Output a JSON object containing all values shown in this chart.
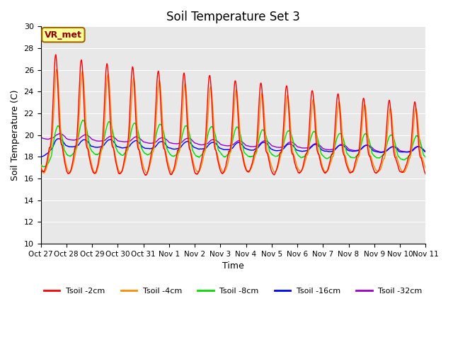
{
  "title": "Soil Temperature Set 3",
  "xlabel": "Time",
  "ylabel": "Soil Temperature (C)",
  "ylim": [
    10,
    30
  ],
  "yticks": [
    10,
    12,
    14,
    16,
    18,
    20,
    22,
    24,
    26,
    28,
    30
  ],
  "x_labels": [
    "Oct 27",
    "Oct 28",
    "Oct 29",
    "Oct 30",
    "Oct 31",
    "Nov 1",
    "Nov 2",
    "Nov 3",
    "Nov 4",
    "Nov 5",
    "Nov 6",
    "Nov 7",
    "Nov 8",
    "Nov 9",
    "Nov 10",
    "Nov 11"
  ],
  "series_colors": [
    "#ff0000",
    "#ff8c00",
    "#00dd00",
    "#0000ff",
    "#9900cc"
  ],
  "series_labels": [
    "Tsoil -2cm",
    "Tsoil -4cm",
    "Tsoil -8cm",
    "Tsoil -16cm",
    "Tsoil -32cm"
  ],
  "plot_bg_color": "#e8e8e8",
  "annotation_text": "VR_met",
  "annotation_bg": "#ffff99",
  "annotation_border": "#996600",
  "line_width": 1.0
}
